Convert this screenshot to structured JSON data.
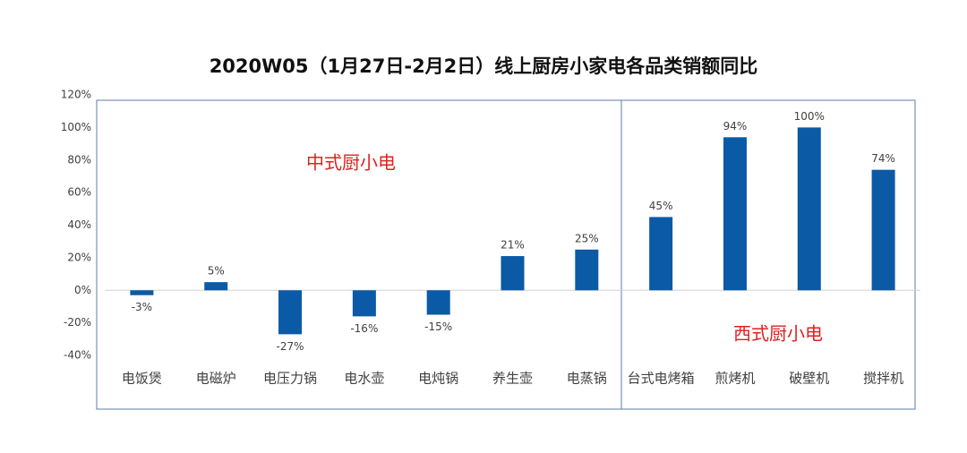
{
  "chart_data": {
    "type": "bar",
    "title": "2020W05（1月27日-2月2日）线上厨房小家电各品类销额同比",
    "categories": [
      "电饭煲",
      "电磁炉",
      "电压力锅",
      "电水壶",
      "电炖锅",
      "养生壶",
      "电蒸锅",
      "台式电烤箱",
      "煎烤机",
      "破壁机",
      "搅拌机"
    ],
    "values": [
      -3,
      5,
      -27,
      -16,
      -15,
      21,
      25,
      45,
      94,
      100,
      74
    ],
    "value_labels": [
      "-3%",
      "5%",
      "-27%",
      "-16%",
      "-15%",
      "21%",
      "25%",
      "45%",
      "94%",
      "100%",
      "74%"
    ],
    "color": "#0b5aa6",
    "ylim": [
      -40,
      120
    ],
    "yticks": [
      {
        "value": -40,
        "label": "-40%"
      },
      {
        "value": -20,
        "label": "-20%"
      },
      {
        "value": 0,
        "label": "0%"
      },
      {
        "value": 20,
        "label": "20%"
      },
      {
        "value": 40,
        "label": "40%"
      },
      {
        "value": 60,
        "label": "60%"
      },
      {
        "value": 80,
        "label": "80%"
      },
      {
        "value": 100,
        "label": "100%"
      },
      {
        "value": 120,
        "label": "120%"
      }
    ],
    "annotations": [
      "中式厨小电",
      "西式厨小电"
    ]
  }
}
